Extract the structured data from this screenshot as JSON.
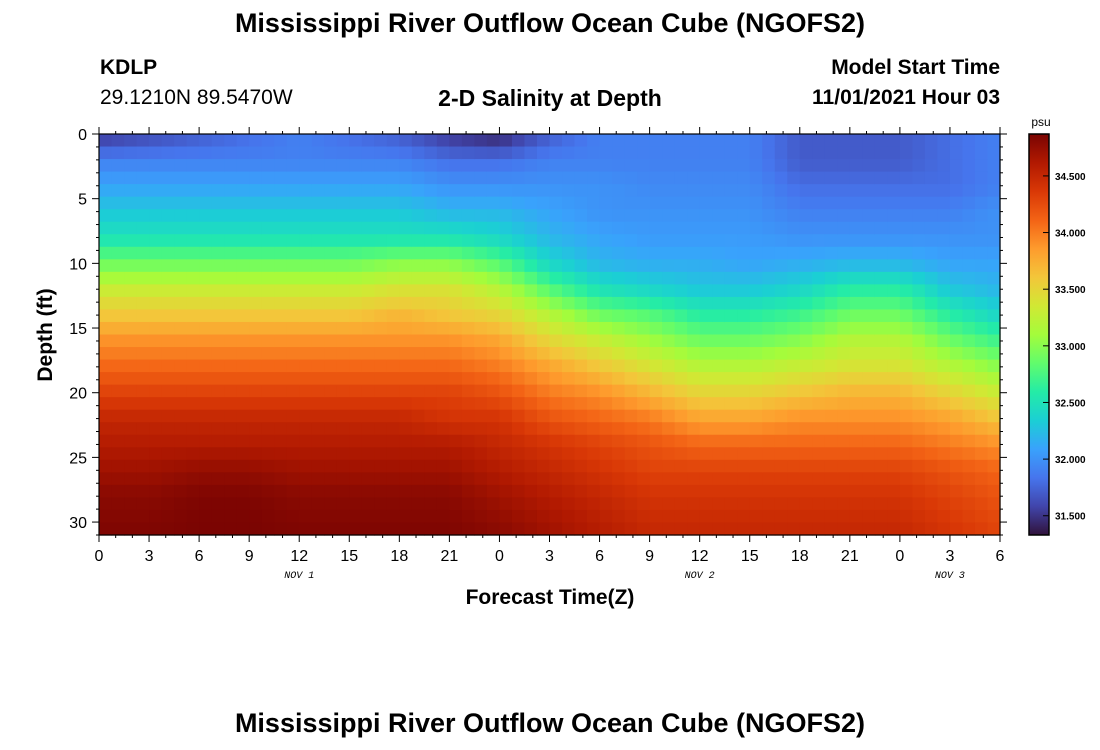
{
  "title": "Mississippi River Outflow Ocean Cube (NGOFS2)",
  "station": {
    "id": "KDLP",
    "coords": "29.1210N  89.5470W"
  },
  "subtitle": "2-D Salinity at Depth",
  "model_start": {
    "label": "Model Start Time",
    "value": "11/01/2021 Hour 03"
  },
  "footer_title": "Mississippi River Outflow Ocean Cube (NGOFS2)",
  "chart_data": {
    "type": "heatmap",
    "ylabel": "Depth (ft)",
    "xlabel": "Forecast Time(Z)",
    "x_hours_range": [
      0,
      54
    ],
    "ylim": [
      0,
      31
    ],
    "y_inverted": true,
    "x_tick_labels": [
      "0",
      "3",
      "6",
      "9",
      "12",
      "15",
      "18",
      "21",
      "0",
      "3",
      "6",
      "9",
      "12",
      "15",
      "18",
      "21",
      "0",
      "3",
      "6"
    ],
    "y_ticks": [
      0,
      5,
      10,
      15,
      20,
      25,
      30
    ],
    "date_labels": [
      {
        "text": "NOV 1",
        "hour": 12
      },
      {
        "text": "NOV 2",
        "hour": 36
      },
      {
        "text": "NOV 3",
        "hour": 51
      }
    ],
    "colorbar": {
      "unit": "psu",
      "range": [
        31.33,
        34.87
      ],
      "tick_values": [
        31.5,
        32.0,
        32.5,
        33.0,
        33.5,
        34.0,
        34.5
      ],
      "tick_labels": [
        "31.500",
        "32.000",
        "32.500",
        "33.000",
        "33.500",
        "34.000",
        "34.500"
      ],
      "colors": [
        "#30123b",
        "#4145ab",
        "#4675ed",
        "#39a2fc",
        "#1bcfd4",
        "#24eca6",
        "#61fc6c",
        "#a4fc3b",
        "#d1e834",
        "#f3c63a",
        "#fe9b2d",
        "#f36315",
        "#d93806",
        "#b11901",
        "#7a0402"
      ]
    },
    "profile_times_h": [
      0,
      3,
      6,
      9,
      12,
      15,
      18,
      21,
      24,
      27,
      30,
      33,
      36,
      39,
      42,
      45,
      48,
      51,
      54
    ],
    "profile_depths_ft": [
      0,
      2,
      4,
      6,
      8,
      10,
      12,
      14,
      16,
      18,
      20,
      22,
      24,
      26,
      28,
      31
    ],
    "salinity_psu": [
      [
        31.5,
        31.9,
        32.1,
        32.3,
        32.5,
        32.9,
        33.3,
        33.6,
        33.9,
        34.1,
        34.3,
        34.5,
        34.6,
        34.7,
        34.8,
        34.85
      ],
      [
        31.6,
        31.9,
        32.1,
        32.3,
        32.5,
        32.9,
        33.3,
        33.6,
        33.9,
        34.1,
        34.3,
        34.5,
        34.6,
        34.7,
        34.8,
        34.85
      ],
      [
        31.7,
        31.9,
        32.1,
        32.3,
        32.5,
        32.9,
        33.3,
        33.6,
        33.9,
        34.1,
        34.3,
        34.5,
        34.6,
        34.75,
        34.85,
        34.87
      ],
      [
        31.8,
        31.9,
        32.1,
        32.3,
        32.5,
        32.9,
        33.3,
        33.6,
        33.9,
        34.1,
        34.3,
        34.5,
        34.6,
        34.75,
        34.85,
        34.87
      ],
      [
        31.9,
        31.9,
        32.1,
        32.3,
        32.5,
        32.9,
        33.3,
        33.6,
        33.9,
        34.1,
        34.3,
        34.5,
        34.6,
        34.7,
        34.8,
        34.85
      ],
      [
        31.8,
        31.9,
        32.1,
        32.3,
        32.5,
        32.9,
        33.3,
        33.6,
        33.9,
        34.1,
        34.3,
        34.5,
        34.6,
        34.7,
        34.8,
        34.85
      ],
      [
        31.7,
        31.9,
        32.1,
        32.3,
        32.5,
        33.0,
        33.4,
        33.7,
        33.9,
        34.1,
        34.3,
        34.5,
        34.6,
        34.7,
        34.8,
        34.85
      ],
      [
        31.5,
        31.8,
        32.0,
        32.2,
        32.5,
        33.0,
        33.4,
        33.6,
        33.9,
        34.1,
        34.3,
        34.4,
        34.6,
        34.7,
        34.8,
        34.85
      ],
      [
        31.4,
        31.8,
        32.0,
        32.2,
        32.4,
        32.8,
        33.2,
        33.5,
        33.8,
        34.0,
        34.2,
        34.4,
        34.5,
        34.6,
        34.7,
        34.8
      ],
      [
        31.7,
        31.9,
        32.0,
        32.1,
        32.2,
        32.4,
        32.8,
        33.2,
        33.5,
        33.8,
        34.0,
        34.2,
        34.4,
        34.5,
        34.6,
        34.7
      ],
      [
        31.9,
        31.9,
        32.0,
        32.0,
        32.1,
        32.2,
        32.5,
        32.9,
        33.3,
        33.6,
        33.9,
        34.1,
        34.3,
        34.4,
        34.5,
        34.6
      ],
      [
        31.9,
        31.9,
        31.95,
        32.0,
        32.05,
        32.15,
        32.4,
        32.8,
        33.1,
        33.4,
        33.7,
        34.0,
        34.2,
        34.3,
        34.4,
        34.5
      ],
      [
        31.9,
        31.9,
        31.95,
        32.0,
        32.05,
        32.15,
        32.3,
        32.6,
        32.9,
        33.2,
        33.5,
        33.8,
        34.1,
        34.3,
        34.4,
        34.5
      ],
      [
        31.9,
        31.9,
        31.95,
        32.0,
        32.05,
        32.1,
        32.3,
        32.6,
        32.9,
        33.2,
        33.5,
        33.8,
        34.1,
        34.3,
        34.4,
        34.5
      ],
      [
        31.7,
        31.7,
        31.8,
        31.9,
        32.0,
        32.15,
        32.4,
        32.7,
        33.0,
        33.3,
        33.6,
        33.9,
        34.1,
        34.3,
        34.4,
        34.5
      ],
      [
        31.7,
        31.7,
        31.8,
        31.9,
        32.0,
        32.2,
        32.6,
        32.9,
        33.2,
        33.4,
        33.7,
        33.9,
        34.1,
        34.3,
        34.4,
        34.5
      ],
      [
        31.7,
        31.7,
        31.8,
        31.9,
        32.0,
        32.2,
        32.6,
        32.9,
        33.2,
        33.4,
        33.7,
        33.9,
        34.1,
        34.3,
        34.4,
        34.5
      ],
      [
        31.8,
        31.8,
        31.8,
        31.9,
        32.0,
        32.1,
        32.3,
        32.6,
        32.9,
        33.2,
        33.5,
        33.8,
        34.0,
        34.2,
        34.3,
        34.4
      ],
      [
        31.9,
        31.9,
        31.9,
        32.0,
        32.0,
        32.1,
        32.2,
        32.4,
        32.7,
        33.0,
        33.3,
        33.6,
        33.9,
        34.1,
        34.2,
        34.3
      ]
    ]
  }
}
